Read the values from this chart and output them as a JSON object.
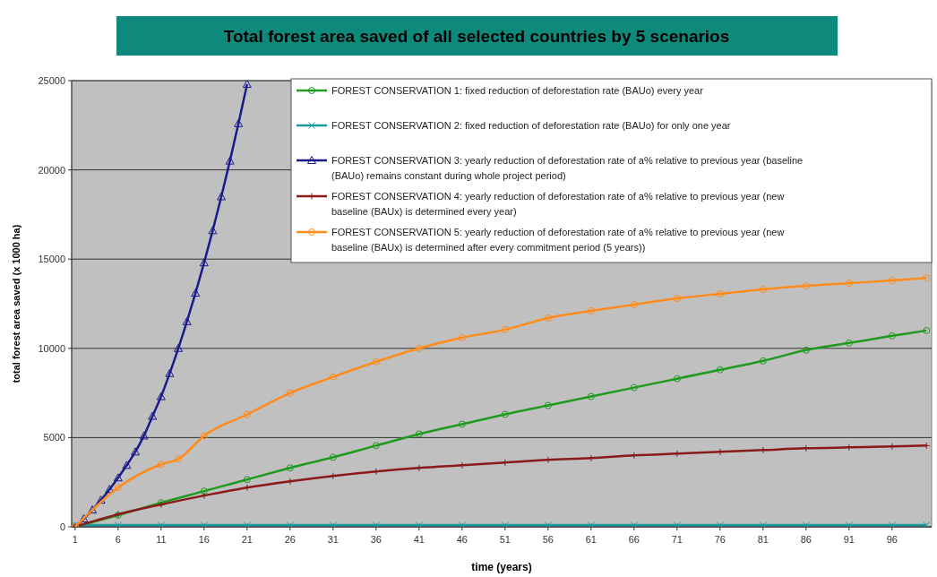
{
  "chart_data": {
    "type": "line",
    "title": "Total forest area saved of all selected countries by 5 scenarios",
    "xlabel": "time (years)",
    "ylabel": "total forest area saved (x 1000 ha)",
    "xlim": [
      0.6,
      100.6
    ],
    "xticks": [
      1,
      6,
      11,
      16,
      21,
      26,
      31,
      36,
      41,
      46,
      51,
      56,
      61,
      66,
      71,
      76,
      81,
      86,
      91,
      96
    ],
    "ylim": [
      0,
      25000
    ],
    "yticks": [
      0,
      5000,
      10000,
      15000,
      20000,
      25000
    ],
    "grid": "y",
    "legend": "top right",
    "series": [
      {
        "name": "FOREST CONSERVATION 1: fixed reduction of deforestation rate (BAUo) every year",
        "color": "#1e9a1e",
        "marker": "circle",
        "x": [
          1,
          6,
          11,
          16,
          21,
          26,
          31,
          36,
          41,
          46,
          51,
          56,
          61,
          66,
          71,
          76,
          81,
          86,
          91,
          96,
          100
        ],
        "values": [
          0,
          650,
          1350,
          2000,
          2650,
          3300,
          3900,
          4550,
          5200,
          5750,
          6300,
          6800,
          7300,
          7800,
          8300,
          8800,
          9300,
          9900,
          10300,
          10700,
          11000
        ]
      },
      {
        "name": "FOREST CONSERVATION 2: fixed reduction of deforestation rate (BAUo) for only one year",
        "color": "#1a9a9a",
        "marker": "cross",
        "x": [
          1,
          6,
          11,
          16,
          21,
          26,
          31,
          36,
          41,
          46,
          51,
          56,
          61,
          66,
          71,
          76,
          81,
          86,
          91,
          96,
          100
        ],
        "values": [
          100,
          100,
          100,
          100,
          100,
          100,
          100,
          100,
          100,
          100,
          100,
          100,
          100,
          100,
          100,
          100,
          100,
          100,
          100,
          100,
          100
        ]
      },
      {
        "name": "FOREST CONSERVATION 3: yearly reduction of deforestation rate of a% relative to previous year (baseline (BAUo) remains constant during whole project period)",
        "color": "#1a1a8c",
        "marker": "triangle",
        "x": [
          1,
          2,
          3,
          4,
          5,
          6,
          7,
          8,
          9,
          10,
          11,
          12,
          13,
          14,
          15,
          16,
          17,
          18,
          19,
          20,
          21
        ],
        "values": [
          0,
          450,
          950,
          1500,
          2100,
          2750,
          3450,
          4200,
          5100,
          6200,
          7300,
          8600,
          10000,
          11500,
          13100,
          14800,
          16600,
          18500,
          20500,
          22600,
          24800
        ]
      },
      {
        "name": "FOREST CONSERVATION 4: yearly reduction of deforestation rate of a% relative to previous year (new baseline (BAUx) is determined every year)",
        "color": "#8b1a1a",
        "marker": "plus",
        "x": [
          1,
          6,
          11,
          16,
          21,
          26,
          31,
          36,
          41,
          46,
          51,
          56,
          61,
          66,
          71,
          76,
          81,
          86,
          91,
          96,
          100
        ],
        "values": [
          0,
          700,
          1250,
          1750,
          2200,
          2550,
          2850,
          3100,
          3300,
          3450,
          3600,
          3750,
          3850,
          4000,
          4100,
          4200,
          4300,
          4400,
          4450,
          4500,
          4550
        ]
      },
      {
        "name": "FOREST CONSERVATION 5: yearly reduction of deforestation rate of a% relative to previous year (new baseline (BAUx) is determined after every commitment period (5 years))",
        "color": "#ff8c1a",
        "marker": "circle",
        "x": [
          1,
          6,
          11,
          13,
          16,
          21,
          26,
          31,
          36,
          41,
          46,
          51,
          56,
          61,
          66,
          71,
          76,
          81,
          86,
          91,
          96,
          100
        ],
        "values": [
          0,
          2200,
          3500,
          3800,
          5100,
          6300,
          7500,
          8400,
          9250,
          10000,
          10600,
          11050,
          11700,
          12100,
          12450,
          12800,
          13050,
          13300,
          13500,
          13650,
          13800,
          13950
        ]
      }
    ]
  }
}
